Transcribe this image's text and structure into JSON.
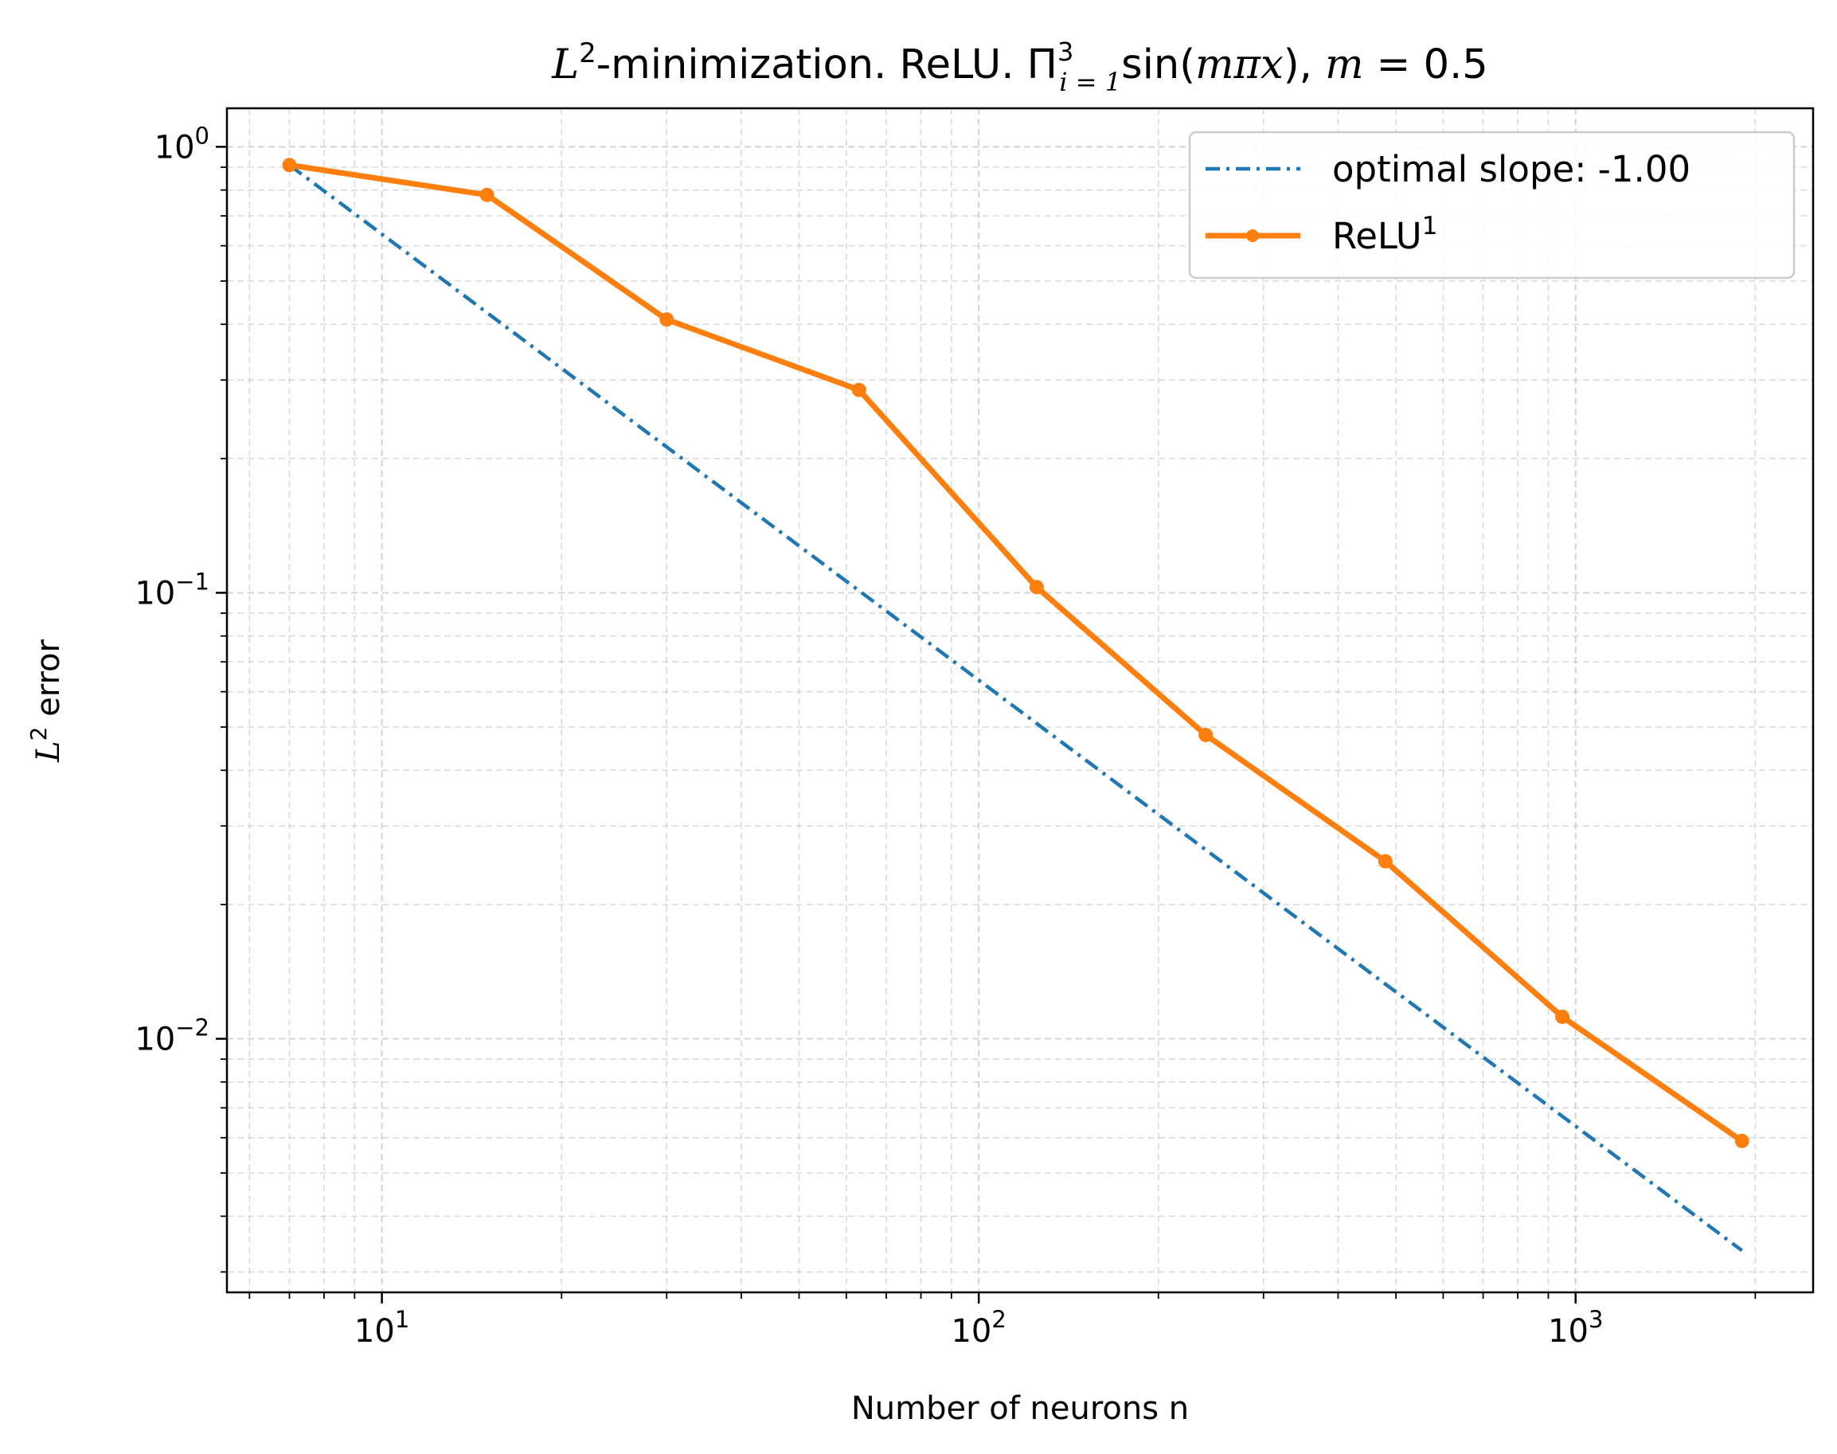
{
  "chart_data": {
    "type": "line",
    "title": {
      "prefix": "L",
      "prefix_sup": "2",
      "text": "-minimization. ReLU. Π",
      "sub": "i = 1",
      "sup": "3",
      "tail": "sin(",
      "m": "m",
      "pi": "π",
      "x": "x",
      "after": "), ",
      "m2": "m",
      "eq": " = 0.5"
    },
    "xlabel": "Number of neurons n",
    "ylabel": {
      "base": "L",
      "sup": "2",
      "rest": " error"
    },
    "x_scale": "log",
    "y_scale": "log",
    "xlim": [
      5.5,
      2500
    ],
    "ylim": [
      0.0027,
      1.22
    ],
    "x_ticks": [
      {
        "value": 10,
        "base": "10",
        "exp": "1"
      },
      {
        "value": 100,
        "base": "10",
        "exp": "2"
      },
      {
        "value": 1000,
        "base": "10",
        "exp": "3"
      }
    ],
    "y_ticks": [
      {
        "value": 1,
        "base": "10",
        "exp": "0"
      },
      {
        "value": 0.1,
        "base": "10",
        "exp": "−1"
      },
      {
        "value": 0.01,
        "base": "10",
        "exp": "−2"
      }
    ],
    "grid": true,
    "legend_position": "upper right",
    "series": [
      {
        "name": "optimal slope: -1.00",
        "style": "dash-dot",
        "color": "#1f77b4",
        "x": [
          7,
          1900
        ],
        "y": [
          0.91,
          0.00335
        ]
      },
      {
        "name": "ReLU",
        "name_sup": "1",
        "style": "solid-marker",
        "color": "#ff7f0e",
        "x": [
          7,
          15,
          30,
          63,
          125,
          240,
          480,
          950,
          1900
        ],
        "y": [
          0.91,
          0.78,
          0.41,
          0.285,
          0.103,
          0.048,
          0.025,
          0.0112,
          0.0059
        ]
      }
    ]
  }
}
